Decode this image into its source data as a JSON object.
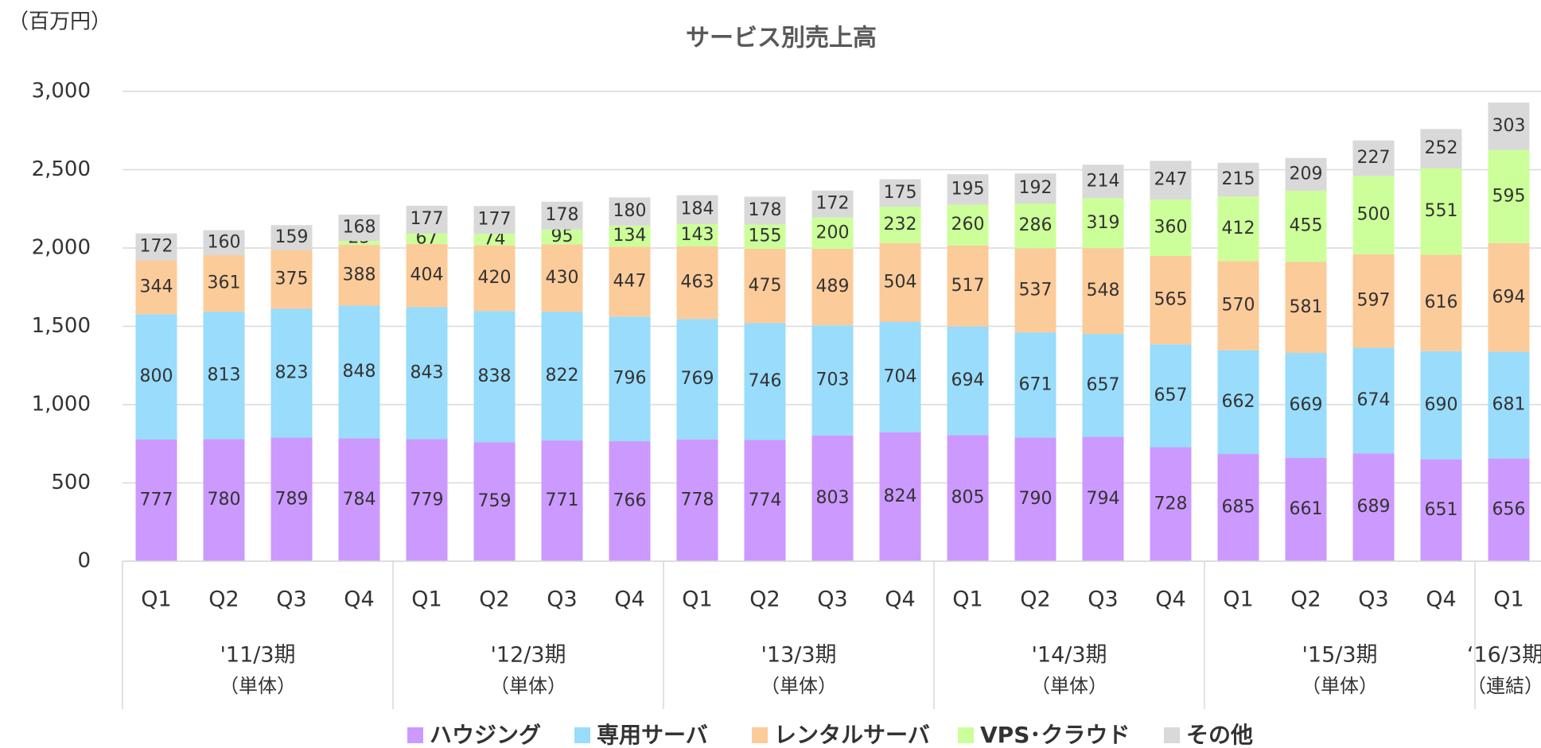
{
  "chart_data": {
    "type": "stacked_bar",
    "title": "サービス別売上高",
    "y_label": "（百万円）",
    "groups": [
      {
        "label": "'11/3期",
        "note": "（単体）",
        "categories": [
          "Q1",
          "Q2",
          "Q3",
          "Q4"
        ]
      },
      {
        "label": "'12/3期",
        "note": "（単体）",
        "categories": [
          "Q1",
          "Q2",
          "Q3",
          "Q4"
        ]
      },
      {
        "label": "'13/3期",
        "note": "（単体）",
        "categories": [
          "Q1",
          "Q2",
          "Q3",
          "Q4"
        ]
      },
      {
        "label": "'14/3期",
        "note": "（単体）",
        "categories": [
          "Q1",
          "Q2",
          "Q3",
          "Q4"
        ]
      },
      {
        "label": "'15/3期",
        "note": "（単体）",
        "categories": [
          "Q1",
          "Q2",
          "Q3",
          "Q4"
        ]
      },
      {
        "label": "‘16/3期",
        "note": "（連結）",
        "categories": [
          "Q1"
        ]
      }
    ],
    "series": [
      {
        "name": "ハウジング",
        "color": "#cc99ff",
        "values": [
          777,
          780,
          789,
          784,
          779,
          759,
          771,
          766,
          778,
          774,
          803,
          824,
          805,
          790,
          794,
          728,
          685,
          661,
          689,
          651,
          656
        ]
      },
      {
        "name": "専用サーバ",
        "color": "#99dcfb",
        "values": [
          800,
          813,
          823,
          848,
          843,
          838,
          822,
          796,
          769,
          746,
          703,
          704,
          694,
          671,
          657,
          657,
          662,
          669,
          674,
          690,
          681
        ]
      },
      {
        "name": "レンタルサーバ",
        "color": "#fccb9a",
        "values": [
          344,
          361,
          375,
          388,
          404,
          420,
          430,
          447,
          463,
          475,
          489,
          504,
          517,
          537,
          548,
          565,
          570,
          581,
          597,
          616,
          694
        ]
      },
      {
        "name": "VPS･クラウド",
        "color": "#ccff99",
        "values": [
          null,
          null,
          null,
          25,
          67,
          74,
          95,
          134,
          143,
          155,
          200,
          232,
          260,
          286,
          319,
          360,
          412,
          455,
          500,
          551,
          595
        ]
      },
      {
        "name": "その他",
        "color": "#d9d9d9",
        "values": [
          172,
          160,
          159,
          168,
          177,
          177,
          178,
          180,
          184,
          178,
          172,
          175,
          195,
          192,
          214,
          247,
          215,
          209,
          227,
          252,
          303
        ]
      }
    ],
    "ylim": [
      0,
      3000
    ],
    "yticks": [
      0,
      500,
      {
        "value": 1000,
        "label": "1,000"
      },
      {
        "value": 1500,
        "label": "1,500"
      },
      {
        "value": 2000,
        "label": "2,000"
      },
      {
        "value": 2500,
        "label": "2,500"
      },
      {
        "value": 3000,
        "label": "3,000"
      }
    ],
    "grid": true,
    "legend": "bottom"
  }
}
